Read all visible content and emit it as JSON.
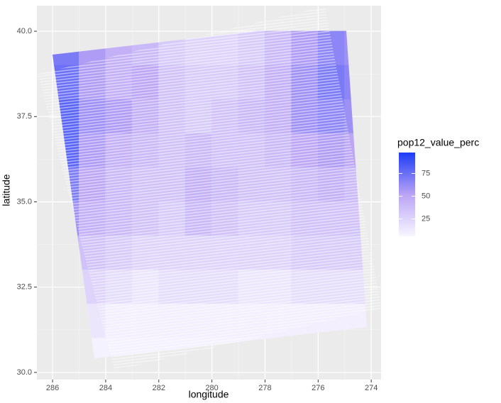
{
  "chart_data": {
    "type": "heatmap",
    "x_label": "longitude",
    "y_label": "latitude",
    "x": [
      285.5,
      284.5,
      283.5,
      282.5,
      281.5,
      280.5,
      279.5,
      278.5,
      277.5,
      276.5,
      275.5,
      274.5
    ],
    "y": [
      39.5,
      38.5,
      37.5,
      36.5,
      35.5,
      34.5,
      33.5,
      32.5,
      31.5,
      30.5
    ],
    "values": [
      [
        70,
        55,
        45,
        40,
        30,
        25,
        25,
        30,
        40,
        55,
        65,
        60
      ],
      [
        75,
        55,
        45,
        50,
        35,
        30,
        30,
        35,
        45,
        60,
        70,
        65
      ],
      [
        80,
        60,
        55,
        45,
        35,
        30,
        35,
        40,
        45,
        60,
        65,
        60
      ],
      [
        80,
        55,
        45,
        40,
        35,
        40,
        35,
        35,
        40,
        50,
        55,
        50
      ],
      [
        70,
        50,
        40,
        35,
        35,
        45,
        40,
        35,
        35,
        40,
        45,
        40
      ],
      [
        60,
        45,
        40,
        35,
        30,
        40,
        35,
        30,
        30,
        35,
        35,
        35
      ],
      [
        45,
        35,
        30,
        25,
        25,
        25,
        25,
        25,
        25,
        30,
        30,
        30
      ],
      [
        30,
        25,
        20,
        15,
        20,
        20,
        20,
        15,
        15,
        20,
        20,
        20
      ],
      [
        20,
        15,
        10,
        10,
        10,
        10,
        10,
        10,
        10,
        10,
        10,
        10
      ],
      [
        10,
        8,
        8,
        8,
        8,
        8,
        8,
        8,
        8,
        8,
        8,
        8
      ]
    ],
    "xlim": [
      286.59,
      273.63
    ],
    "xticks": [
      286,
      284,
      282,
      280,
      278,
      276,
      274
    ],
    "ylim": [
      29.79,
      40.75
    ],
    "yticks": [
      {
        "value": 30,
        "label": "30.0"
      },
      {
        "value": 32.5,
        "label": "32.5"
      },
      {
        "value": 35,
        "label": "35.0"
      },
      {
        "value": 37.5,
        "label": "37.5"
      },
      {
        "value": 40,
        "label": "40.0"
      }
    ],
    "grid": true,
    "palette": [
      "#f8f6ff",
      "#b9a3f5",
      "#1d3cf7"
    ],
    "legend": {
      "title": "pop12_value_perc",
      "lim": [
        6,
        98
      ],
      "ticks": [
        25,
        50,
        75
      ]
    }
  }
}
